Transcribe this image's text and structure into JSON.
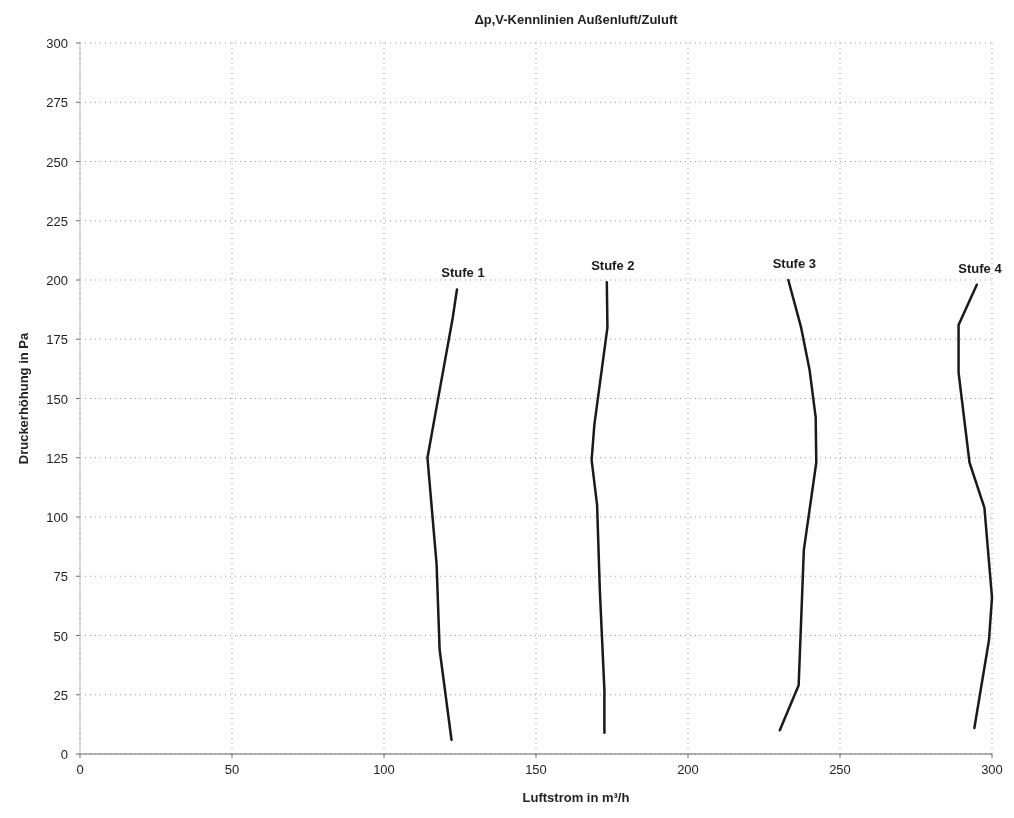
{
  "chart_data": {
    "type": "line",
    "title": "Δp,V-Kennlinien Außenluft/Zuluft",
    "xlabel": "Luftstrom in m³/h",
    "ylabel": "Druckerhöhung in Pa",
    "xlim": [
      0,
      300
    ],
    "ylim": [
      0,
      300
    ],
    "xticks": [
      0,
      50,
      100,
      150,
      200,
      250,
      300
    ],
    "yticks": [
      0,
      25,
      50,
      75,
      100,
      125,
      150,
      175,
      200,
      225,
      250,
      275,
      300
    ],
    "grid": true,
    "marker": "none",
    "line_style": "solid",
    "series": [
      {
        "name": "Stufe 1",
        "color": "#1a1a1a",
        "x": [
          124,
          122.6,
          117.1,
          114.3,
          117.3,
          118.3,
          122.2
        ],
        "values": [
          196,
          184,
          145,
          125,
          80,
          44,
          6
        ]
      },
      {
        "name": "Stufe 2",
        "color": "#1a1a1a",
        "x": [
          173.3,
          173.5,
          169.2,
          168.3,
          170.1,
          171,
          172.5,
          172.5
        ],
        "values": [
          199,
          180,
          139,
          124,
          105,
          69,
          27,
          9
        ]
      },
      {
        "name": "Stufe 3",
        "color": "#1a1a1a",
        "x": [
          233,
          237.2,
          240,
          242,
          242.2,
          238.1,
          236.4,
          230.2
        ],
        "values": [
          200,
          180,
          162,
          142,
          123,
          86,
          29,
          10
        ]
      },
      {
        "name": "Stufe 4",
        "color": "#1a1a1a",
        "x": [
          295,
          289,
          289,
          292.6,
          297.5,
          300,
          299,
          294.2
        ],
        "values": [
          198,
          181,
          161,
          123,
          104,
          66,
          48,
          11
        ]
      }
    ]
  }
}
